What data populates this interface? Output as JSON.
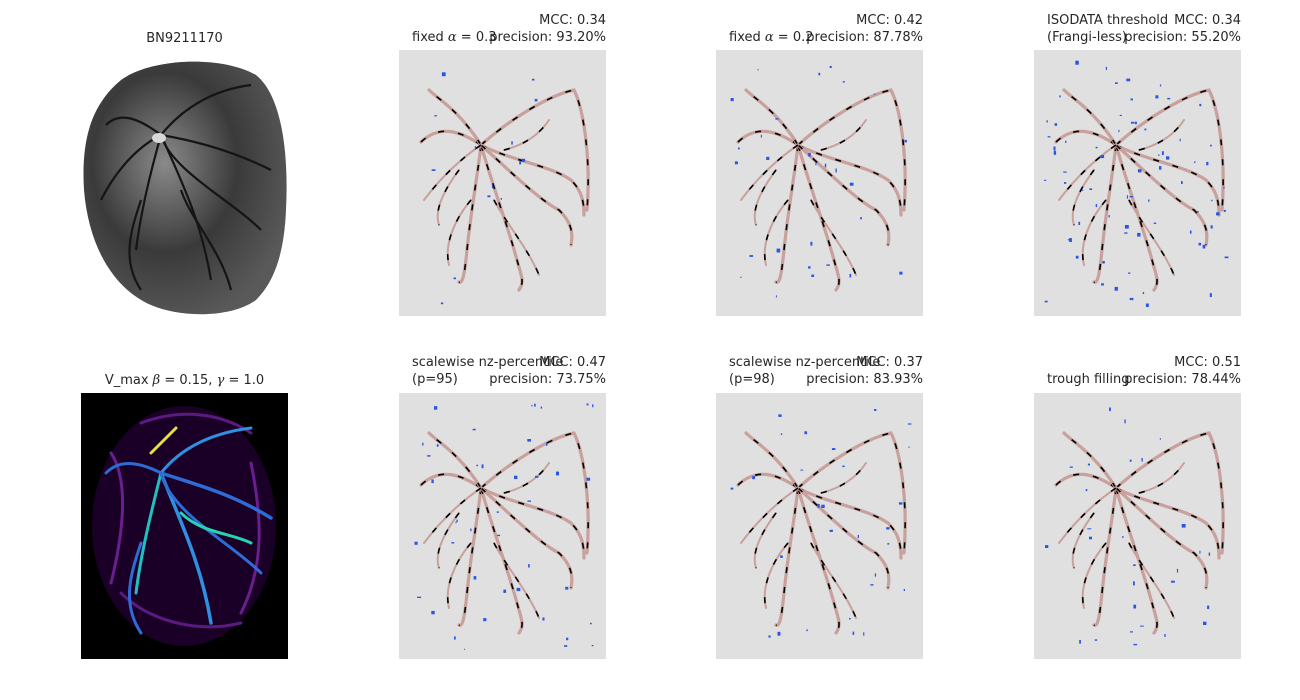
{
  "figure": {
    "colors": {
      "background": "#e0e0e0",
      "ground_truth": "#c8a09c",
      "false_negative": "#000000",
      "false_positive": "#2b55e3"
    },
    "panels": [
      {
        "id": "raw",
        "title": "BN9211170",
        "kind": "raw-image"
      },
      {
        "id": "alpha03",
        "left_line1_pre": "fixed ",
        "left_line1_sym": "α",
        "left_line1_post": " = 0.3",
        "right_line1": "MCC: 0.34",
        "right_line2": "precision: 93.20%",
        "kind": "overlay",
        "fp": 1
      },
      {
        "id": "alpha02",
        "left_line1_pre": "fixed ",
        "left_line1_sym": "α",
        "left_line1_post": " = 0.2",
        "right_line1": "MCC: 0.42",
        "right_line2": "precision: 87.78%",
        "kind": "overlay",
        "fp": 2
      },
      {
        "id": "isodata",
        "left_line1": "ISODATA threshold",
        "left_line2": "(Frangi-less)",
        "right_line1": "MCC: 0.34",
        "right_line2": "precision: 55.20%",
        "kind": "overlay",
        "fp": 5
      },
      {
        "id": "vmax",
        "title_pre": "V_max ",
        "title_b": "β",
        "title_mid": " = 0.15, ",
        "title_g": "γ",
        "title_post": " = 1.0",
        "kind": "vesselness"
      },
      {
        "id": "p95",
        "left_line1": "scalewise nz-percentile",
        "left_line2": "(p=95)",
        "right_line1": "MCC: 0.47",
        "right_line2": "precision: 73.75%",
        "kind": "overlay",
        "fp": 3
      },
      {
        "id": "p98",
        "left_line1": "scalewise nz-percentile",
        "left_line2": "(p=98)",
        "right_line1": "MCC: 0.37",
        "right_line2": "precision: 83.93%",
        "kind": "overlay",
        "fp": 2
      },
      {
        "id": "trough",
        "left_line1": "trough filling",
        "right_line1": "MCC: 0.51",
        "right_line2": "precision: 78.44%",
        "kind": "overlay",
        "fp": 2
      }
    ]
  }
}
